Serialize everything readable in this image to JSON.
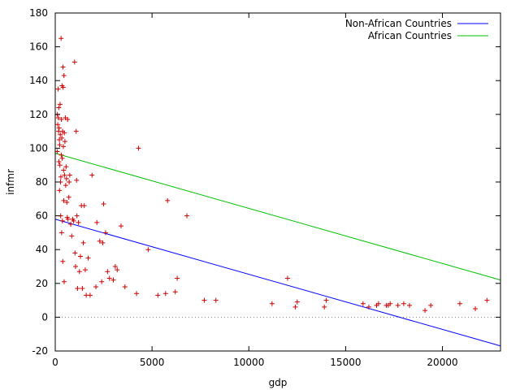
{
  "chart_data": {
    "type": "scatter",
    "xlabel": "gdp",
    "ylabel": "infmr",
    "xlim": [
      0,
      23000
    ],
    "ylim": [
      -20,
      180
    ],
    "x_ticks": [
      0,
      5000,
      10000,
      15000,
      20000
    ],
    "y_ticks": [
      -20,
      0,
      20,
      40,
      60,
      80,
      100,
      120,
      140,
      160,
      180
    ],
    "grid": false,
    "zero_line": true,
    "legend_position": "top-right",
    "colors": {
      "points": "#d00000",
      "non_african": "#0000ff",
      "african": "#00c000",
      "zero_line": "#808080"
    },
    "series": [
      {
        "name": "Non-African Countries",
        "type": "line",
        "color": "#0000ff",
        "x": [
          0,
          23000
        ],
        "y": [
          58,
          -17
        ]
      },
      {
        "name": "African Countries",
        "type": "line",
        "color": "#00c000",
        "x": [
          0,
          23000
        ],
        "y": [
          97,
          22
        ]
      }
    ],
    "points": [
      [
        100,
        98
      ],
      [
        110,
        120
      ],
      [
        130,
        114
      ],
      [
        150,
        135
      ],
      [
        160,
        118
      ],
      [
        170,
        110
      ],
      [
        180,
        124
      ],
      [
        190,
        92
      ],
      [
        200,
        112
      ],
      [
        210,
        105
      ],
      [
        220,
        75
      ],
      [
        230,
        102
      ],
      [
        240,
        90
      ],
      [
        250,
        126
      ],
      [
        260,
        108
      ],
      [
        270,
        80
      ],
      [
        280,
        60
      ],
      [
        290,
        83
      ],
      [
        300,
        165
      ],
      [
        310,
        96
      ],
      [
        320,
        117
      ],
      [
        330,
        50
      ],
      [
        340,
        106
      ],
      [
        350,
        137
      ],
      [
        360,
        94
      ],
      [
        370,
        57
      ],
      [
        380,
        110
      ],
      [
        390,
        33
      ],
      [
        400,
        148
      ],
      [
        410,
        136
      ],
      [
        420,
        101
      ],
      [
        430,
        87
      ],
      [
        440,
        69
      ],
      [
        450,
        143
      ],
      [
        460,
        21
      ],
      [
        470,
        109
      ],
      [
        480,
        84
      ],
      [
        500,
        104
      ],
      [
        520,
        118
      ],
      [
        540,
        78
      ],
      [
        560,
        89
      ],
      [
        580,
        82
      ],
      [
        600,
        68
      ],
      [
        620,
        59
      ],
      [
        640,
        117
      ],
      [
        660,
        58
      ],
      [
        700,
        71
      ],
      [
        720,
        80
      ],
      [
        750,
        84
      ],
      [
        800,
        55
      ],
      [
        850,
        48
      ],
      [
        900,
        58
      ],
      [
        950,
        57
      ],
      [
        1000,
        151
      ],
      [
        1020,
        38
      ],
      [
        1050,
        30
      ],
      [
        1080,
        110
      ],
      [
        1100,
        81
      ],
      [
        1120,
        60
      ],
      [
        1150,
        17
      ],
      [
        1200,
        56
      ],
      [
        1250,
        27
      ],
      [
        1300,
        36
      ],
      [
        1350,
        66
      ],
      [
        1400,
        17
      ],
      [
        1450,
        44
      ],
      [
        1500,
        66
      ],
      [
        1550,
        28
      ],
      [
        1600,
        13
      ],
      [
        1700,
        35
      ],
      [
        1800,
        13
      ],
      [
        1900,
        84
      ],
      [
        2100,
        18
      ],
      [
        2150,
        56
      ],
      [
        2300,
        45
      ],
      [
        2400,
        21
      ],
      [
        2450,
        44
      ],
      [
        2500,
        67
      ],
      [
        2600,
        50
      ],
      [
        2700,
        27
      ],
      [
        2800,
        23
      ],
      [
        3000,
        22
      ],
      [
        3100,
        30
      ],
      [
        3200,
        28
      ],
      [
        3400,
        54
      ],
      [
        3600,
        18
      ],
      [
        4200,
        14
      ],
      [
        4300,
        100
      ],
      [
        4800,
        40
      ],
      [
        5300,
        13
      ],
      [
        5700,
        14
      ],
      [
        5800,
        69
      ],
      [
        6200,
        15
      ],
      [
        6300,
        23
      ],
      [
        6800,
        60
      ],
      [
        7700,
        10
      ],
      [
        8300,
        10
      ],
      [
        11200,
        8
      ],
      [
        12000,
        23
      ],
      [
        12400,
        6
      ],
      [
        12500,
        9
      ],
      [
        13900,
        6
      ],
      [
        14000,
        10
      ],
      [
        15900,
        8
      ],
      [
        16200,
        6
      ],
      [
        16600,
        7
      ],
      [
        16700,
        8
      ],
      [
        17100,
        7
      ],
      [
        17200,
        7
      ],
      [
        17300,
        8
      ],
      [
        17700,
        7
      ],
      [
        18000,
        8
      ],
      [
        18300,
        7
      ],
      [
        19100,
        4
      ],
      [
        19400,
        7
      ],
      [
        20900,
        8
      ],
      [
        21700,
        5
      ],
      [
        22300,
        10
      ]
    ]
  }
}
